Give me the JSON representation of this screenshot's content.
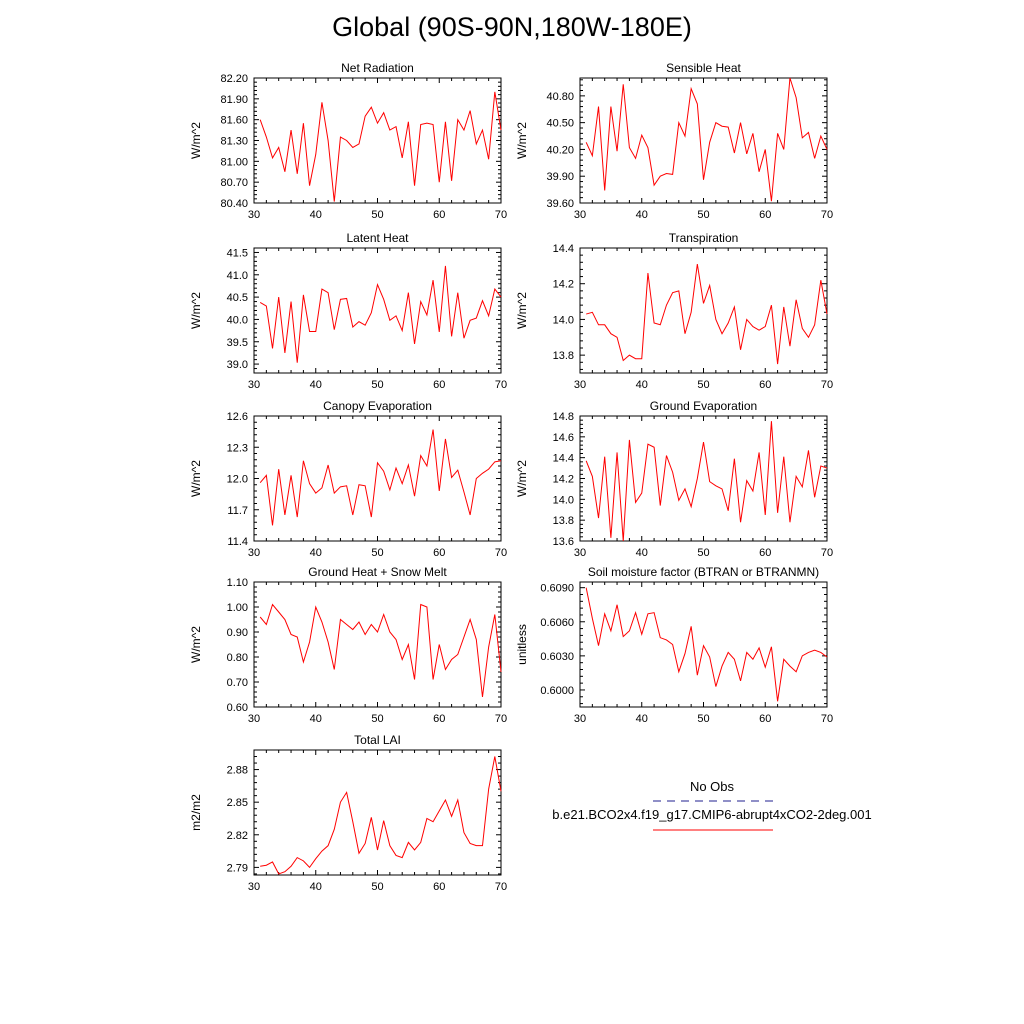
{
  "page": {
    "title": "Global (90S-90N,180W-180E)"
  },
  "legend": {
    "obs_label": "No Obs",
    "case_label": "b.e21.BCO2x4.f19_g17.CMIP6-abrupt4xCO2-2deg.001",
    "obs_color": "#1f1f8f",
    "case_color": "#ff0000"
  },
  "chart_data": [
    {
      "type": "line",
      "title": "Net Radiation",
      "ylabel": "W/m^2",
      "xlim": [
        30,
        70
      ],
      "ylim": [
        80.4,
        82.2
      ],
      "xticks": [
        30,
        40,
        50,
        60,
        70
      ],
      "xtick_labels": [
        "30",
        "40",
        "50",
        "60",
        "70"
      ],
      "yticks": [
        80.4,
        80.7,
        81.0,
        81.3,
        81.6,
        81.9,
        82.2
      ],
      "ytick_labels": [
        "80.40",
        "80.70",
        "81.00",
        "81.30",
        "81.60",
        "81.90",
        "82.20"
      ],
      "x": [
        31,
        32,
        33,
        34,
        35,
        36,
        37,
        38,
        39,
        40,
        41,
        42,
        43,
        44,
        45,
        46,
        47,
        48,
        49,
        50,
        51,
        52,
        53,
        54,
        55,
        56,
        57,
        58,
        59,
        60,
        61,
        62,
        63,
        64,
        65,
        66,
        67,
        68,
        69,
        70
      ],
      "series": [
        {
          "name": "b.e21.BCO2x4.f19_g17.CMIP6-abrupt4xCO2-2deg.001",
          "values": [
            81.6,
            81.35,
            81.05,
            81.2,
            80.85,
            81.45,
            80.82,
            81.55,
            80.65,
            81.1,
            81.85,
            81.3,
            80.42,
            81.35,
            81.3,
            81.2,
            81.25,
            81.65,
            81.78,
            81.55,
            81.7,
            81.45,
            81.5,
            81.05,
            81.57,
            80.65,
            81.53,
            81.55,
            81.53,
            80.7,
            81.57,
            80.72,
            81.6,
            81.45,
            81.73,
            81.25,
            81.45,
            81.03,
            82.0,
            81.45
          ]
        }
      ]
    },
    {
      "type": "line",
      "title": "Sensible Heat",
      "ylabel": "W/m^2",
      "xlim": [
        30,
        70
      ],
      "ylim": [
        39.6,
        41.0
      ],
      "xticks": [
        30,
        40,
        50,
        60,
        70
      ],
      "xtick_labels": [
        "30",
        "40",
        "50",
        "60",
        "70"
      ],
      "yticks": [
        39.6,
        39.9,
        40.2,
        40.5,
        40.8
      ],
      "ytick_labels": [
        "39.60",
        "39.90",
        "40.20",
        "40.50",
        "40.80"
      ],
      "x": [
        31,
        32,
        33,
        34,
        35,
        36,
        37,
        38,
        39,
        40,
        41,
        42,
        43,
        44,
        45,
        46,
        47,
        48,
        49,
        50,
        51,
        52,
        53,
        54,
        55,
        56,
        57,
        58,
        59,
        60,
        61,
        62,
        63,
        64,
        65,
        66,
        67,
        68,
        69,
        70
      ],
      "series": [
        {
          "name": "b.e21.BCO2x4.f19_g17.CMIP6-abrupt4xCO2-2deg.001",
          "values": [
            40.28,
            40.13,
            40.68,
            39.74,
            40.68,
            40.18,
            40.93,
            40.22,
            40.1,
            40.36,
            40.22,
            39.8,
            39.9,
            39.93,
            39.92,
            40.5,
            40.35,
            40.88,
            40.71,
            39.86,
            40.28,
            40.5,
            40.46,
            40.45,
            40.16,
            40.5,
            40.15,
            40.38,
            39.95,
            40.2,
            39.62,
            40.38,
            40.2,
            41.0,
            40.78,
            40.33,
            40.39,
            40.1,
            40.35,
            40.2
          ]
        }
      ]
    },
    {
      "type": "line",
      "title": "Latent Heat",
      "ylabel": "W/m^2",
      "xlim": [
        30,
        70
      ],
      "ylim": [
        38.8,
        41.6
      ],
      "xticks": [
        30,
        40,
        50,
        60,
        70
      ],
      "xtick_labels": [
        "30",
        "40",
        "50",
        "60",
        "70"
      ],
      "yticks": [
        39.0,
        39.5,
        40.0,
        40.5,
        41.0,
        41.5
      ],
      "ytick_labels": [
        "39.0",
        "39.5",
        "40.0",
        "40.5",
        "41.0",
        "41.5"
      ],
      "x": [
        31,
        32,
        33,
        34,
        35,
        36,
        37,
        38,
        39,
        40,
        41,
        42,
        43,
        44,
        45,
        46,
        47,
        48,
        49,
        50,
        51,
        52,
        53,
        54,
        55,
        56,
        57,
        58,
        59,
        60,
        61,
        62,
        63,
        64,
        65,
        66,
        67,
        68,
        69,
        70
      ],
      "series": [
        {
          "name": "b.e21.BCO2x4.f19_g17.CMIP6-abrupt4xCO2-2deg.001",
          "values": [
            40.38,
            40.3,
            39.35,
            40.5,
            39.25,
            40.4,
            39.03,
            40.55,
            39.73,
            39.73,
            40.68,
            40.6,
            39.77,
            40.45,
            40.47,
            39.83,
            39.95,
            39.87,
            40.15,
            40.78,
            40.45,
            39.98,
            40.08,
            39.75,
            40.6,
            39.45,
            40.4,
            40.1,
            40.88,
            39.72,
            41.2,
            39.62,
            40.6,
            39.58,
            39.98,
            40.03,
            40.42,
            40.08,
            40.68,
            40.5
          ]
        }
      ]
    },
    {
      "type": "line",
      "title": "Transpiration",
      "ylabel": "W/m^2",
      "xlim": [
        30,
        70
      ],
      "ylim": [
        13.7,
        14.4
      ],
      "xticks": [
        30,
        40,
        50,
        60,
        70
      ],
      "xtick_labels": [
        "30",
        "40",
        "50",
        "60",
        "70"
      ],
      "yticks": [
        13.8,
        14.0,
        14.2,
        14.4
      ],
      "ytick_labels": [
        "13.8",
        "14.0",
        "14.2",
        "14.4"
      ],
      "x": [
        31,
        32,
        33,
        34,
        35,
        36,
        37,
        38,
        39,
        40,
        41,
        42,
        43,
        44,
        45,
        46,
        47,
        48,
        49,
        50,
        51,
        52,
        53,
        54,
        55,
        56,
        57,
        58,
        59,
        60,
        61,
        62,
        63,
        64,
        65,
        66,
        67,
        68,
        69,
        70
      ],
      "series": [
        {
          "name": "b.e21.BCO2x4.f19_g17.CMIP6-abrupt4xCO2-2deg.001",
          "values": [
            14.03,
            14.04,
            13.97,
            13.97,
            13.92,
            13.9,
            13.77,
            13.8,
            13.78,
            13.78,
            14.26,
            13.98,
            13.97,
            14.08,
            14.15,
            14.16,
            13.92,
            14.04,
            14.31,
            14.09,
            14.19,
            14.0,
            13.92,
            13.98,
            14.07,
            13.83,
            14.0,
            13.96,
            13.94,
            13.96,
            14.08,
            13.75,
            14.07,
            13.85,
            14.11,
            13.95,
            13.9,
            13.97,
            14.22,
            14.03
          ]
        }
      ]
    },
    {
      "type": "line",
      "title": "Canopy Evaporation",
      "ylabel": "W/m^2",
      "xlim": [
        30,
        70
      ],
      "ylim": [
        11.4,
        12.6
      ],
      "xticks": [
        30,
        40,
        50,
        60,
        70
      ],
      "xtick_labels": [
        "30",
        "40",
        "50",
        "60",
        "70"
      ],
      "yticks": [
        11.4,
        11.7,
        12.0,
        12.3,
        12.6
      ],
      "ytick_labels": [
        "11.4",
        "11.7",
        "12.0",
        "12.3",
        "12.6"
      ],
      "x": [
        31,
        32,
        33,
        34,
        35,
        36,
        37,
        38,
        39,
        40,
        41,
        42,
        43,
        44,
        45,
        46,
        47,
        48,
        49,
        50,
        51,
        52,
        53,
        54,
        55,
        56,
        57,
        58,
        59,
        60,
        61,
        62,
        63,
        64,
        65,
        66,
        67,
        68,
        69,
        70
      ],
      "series": [
        {
          "name": "b.e21.BCO2x4.f19_g17.CMIP6-abrupt4xCO2-2deg.001",
          "values": [
            11.96,
            12.03,
            11.55,
            12.09,
            11.65,
            12.03,
            11.63,
            12.17,
            11.95,
            11.86,
            11.91,
            12.13,
            11.86,
            11.92,
            11.93,
            11.65,
            11.94,
            11.93,
            11.63,
            12.15,
            12.07,
            11.89,
            12.1,
            11.95,
            12.13,
            11.83,
            12.22,
            12.12,
            12.47,
            11.88,
            12.38,
            12.01,
            12.08,
            11.87,
            11.65,
            12.0,
            12.05,
            12.09,
            12.16,
            12.17
          ]
        }
      ]
    },
    {
      "type": "line",
      "title": "Ground Evaporation",
      "ylabel": "W/m^2",
      "xlim": [
        30,
        70
      ],
      "ylim": [
        13.6,
        14.8
      ],
      "xticks": [
        30,
        40,
        50,
        60,
        70
      ],
      "xtick_labels": [
        "30",
        "40",
        "50",
        "60",
        "70"
      ],
      "yticks": [
        13.6,
        13.8,
        14.0,
        14.2,
        14.4,
        14.6,
        14.8
      ],
      "ytick_labels": [
        "13.6",
        "13.8",
        "14.0",
        "14.2",
        "14.4",
        "14.6",
        "14.8"
      ],
      "x": [
        31,
        32,
        33,
        34,
        35,
        36,
        37,
        38,
        39,
        40,
        41,
        42,
        43,
        44,
        45,
        46,
        47,
        48,
        49,
        50,
        51,
        52,
        53,
        54,
        55,
        56,
        57,
        58,
        59,
        60,
        61,
        62,
        63,
        64,
        65,
        66,
        67,
        68,
        69,
        70
      ],
      "series": [
        {
          "name": "b.e21.BCO2x4.f19_g17.CMIP6-abrupt4xCO2-2deg.001",
          "values": [
            14.37,
            14.22,
            13.82,
            14.41,
            13.63,
            14.45,
            13.6,
            14.57,
            13.97,
            14.06,
            14.53,
            14.5,
            13.94,
            14.42,
            14.26,
            13.99,
            14.1,
            13.93,
            14.2,
            14.55,
            14.17,
            14.13,
            14.1,
            13.89,
            14.39,
            13.78,
            14.18,
            14.08,
            14.45,
            13.85,
            14.75,
            13.87,
            14.41,
            13.78,
            14.22,
            14.12,
            14.47,
            14.02,
            14.32,
            14.3
          ]
        }
      ]
    },
    {
      "type": "line",
      "title": "Ground Heat + Snow Melt",
      "ylabel": "W/m^2",
      "xlim": [
        30,
        70
      ],
      "ylim": [
        0.6,
        1.1
      ],
      "xticks": [
        30,
        40,
        50,
        60,
        70
      ],
      "xtick_labels": [
        "30",
        "40",
        "50",
        "60",
        "70"
      ],
      "yticks": [
        0.6,
        0.7,
        0.8,
        0.9,
        1.0,
        1.1
      ],
      "ytick_labels": [
        "0.60",
        "0.70",
        "0.80",
        "0.90",
        "1.00",
        "1.10"
      ],
      "x": [
        31,
        32,
        33,
        34,
        35,
        36,
        37,
        38,
        39,
        40,
        41,
        42,
        43,
        44,
        45,
        46,
        47,
        48,
        49,
        50,
        51,
        52,
        53,
        54,
        55,
        56,
        57,
        58,
        59,
        60,
        61,
        62,
        63,
        64,
        65,
        66,
        67,
        68,
        69,
        70
      ],
      "series": [
        {
          "name": "b.e21.BCO2x4.f19_g17.CMIP6-abrupt4xCO2-2deg.001",
          "values": [
            0.96,
            0.93,
            1.01,
            0.98,
            0.95,
            0.89,
            0.88,
            0.78,
            0.86,
            1.0,
            0.94,
            0.86,
            0.75,
            0.95,
            0.93,
            0.91,
            0.94,
            0.89,
            0.93,
            0.9,
            0.97,
            0.9,
            0.87,
            0.79,
            0.85,
            0.71,
            1.01,
            1.0,
            0.71,
            0.85,
            0.75,
            0.79,
            0.81,
            0.88,
            0.95,
            0.87,
            0.64,
            0.84,
            0.97,
            0.74
          ]
        }
      ]
    },
    {
      "type": "line",
      "title": "Soil moisture factor (BTRAN or BTRANMN)",
      "ylabel": "unitless",
      "xlim": [
        30,
        70
      ],
      "ylim": [
        0.5985,
        0.6095
      ],
      "xticks": [
        30,
        40,
        50,
        60,
        70
      ],
      "xtick_labels": [
        "30",
        "40",
        "50",
        "60",
        "70"
      ],
      "yticks": [
        0.6,
        0.603,
        0.606,
        0.609
      ],
      "ytick_labels": [
        "0.6000",
        "0.6030",
        "0.6060",
        "0.6090"
      ],
      "x": [
        31,
        32,
        33,
        34,
        35,
        36,
        37,
        38,
        39,
        40,
        41,
        42,
        43,
        44,
        45,
        46,
        47,
        48,
        49,
        50,
        51,
        52,
        53,
        54,
        55,
        56,
        57,
        58,
        59,
        60,
        61,
        62,
        63,
        64,
        65,
        66,
        67,
        68,
        69,
        70
      ],
      "series": [
        {
          "name": "b.e21.BCO2x4.f19_g17.CMIP6-abrupt4xCO2-2deg.001",
          "values": [
            0.609,
            0.6063,
            0.6039,
            0.6067,
            0.6052,
            0.6075,
            0.6047,
            0.6052,
            0.6068,
            0.6049,
            0.6067,
            0.6068,
            0.6046,
            0.6044,
            0.604,
            0.6016,
            0.6032,
            0.6056,
            0.6013,
            0.6039,
            0.6029,
            0.6003,
            0.6021,
            0.6033,
            0.6027,
            0.6008,
            0.6033,
            0.6027,
            0.6037,
            0.602,
            0.6038,
            0.599,
            0.6027,
            0.6021,
            0.6016,
            0.603,
            0.6033,
            0.6035,
            0.6033,
            0.6029
          ]
        }
      ]
    },
    {
      "type": "line",
      "title": "Total LAI",
      "ylabel": "m2/m2",
      "xlim": [
        30,
        70
      ],
      "ylim": [
        2.783,
        2.898
      ],
      "xticks": [
        30,
        40,
        50,
        60,
        70
      ],
      "xtick_labels": [
        "30",
        "40",
        "50",
        "60",
        "70"
      ],
      "yticks": [
        2.79,
        2.82,
        2.85,
        2.88
      ],
      "ytick_labels": [
        "2.79",
        "2.82",
        "2.85",
        "2.88"
      ],
      "x": [
        31,
        32,
        33,
        34,
        35,
        36,
        37,
        38,
        39,
        40,
        41,
        42,
        43,
        44,
        45,
        46,
        47,
        48,
        49,
        50,
        51,
        52,
        53,
        54,
        55,
        56,
        57,
        58,
        59,
        60,
        61,
        62,
        63,
        64,
        65,
        66,
        67,
        68,
        69,
        70
      ],
      "series": [
        {
          "name": "b.e21.BCO2x4.f19_g17.CMIP6-abrupt4xCO2-2deg.001",
          "values": [
            2.791,
            2.792,
            2.795,
            2.784,
            2.786,
            2.791,
            2.799,
            2.796,
            2.79,
            2.798,
            2.805,
            2.81,
            2.825,
            2.85,
            2.859,
            2.832,
            2.803,
            2.812,
            2.836,
            2.806,
            2.833,
            2.81,
            2.801,
            2.799,
            2.813,
            2.806,
            2.813,
            2.835,
            2.832,
            2.842,
            2.852,
            2.837,
            2.852,
            2.822,
            2.812,
            2.81,
            2.81,
            2.862,
            2.892,
            2.86
          ]
        }
      ]
    }
  ]
}
